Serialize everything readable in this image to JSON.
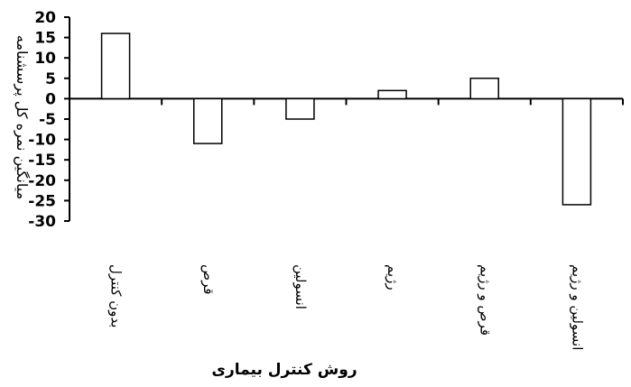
{
  "chart_data": {
    "type": "bar",
    "categories": [
      "بدون کنترل",
      "قرص",
      "انسولین",
      "رژیم",
      "قرص و رژیم",
      "انسولین و رژیم"
    ],
    "values": [
      16,
      -11,
      -5,
      2,
      5,
      -26
    ],
    "ylabel": "میانگین نمره کل پرسشنامه",
    "xlabel": "روش کنترل بیماری",
    "ylim": [
      -30,
      20
    ],
    "yticks": [
      20,
      15,
      10,
      5,
      0,
      -5,
      -10,
      -15,
      -20,
      -25,
      -30
    ],
    "grid": false,
    "legend": "none",
    "bar_fill": "#ffffff",
    "bar_stroke": "#000000"
  }
}
